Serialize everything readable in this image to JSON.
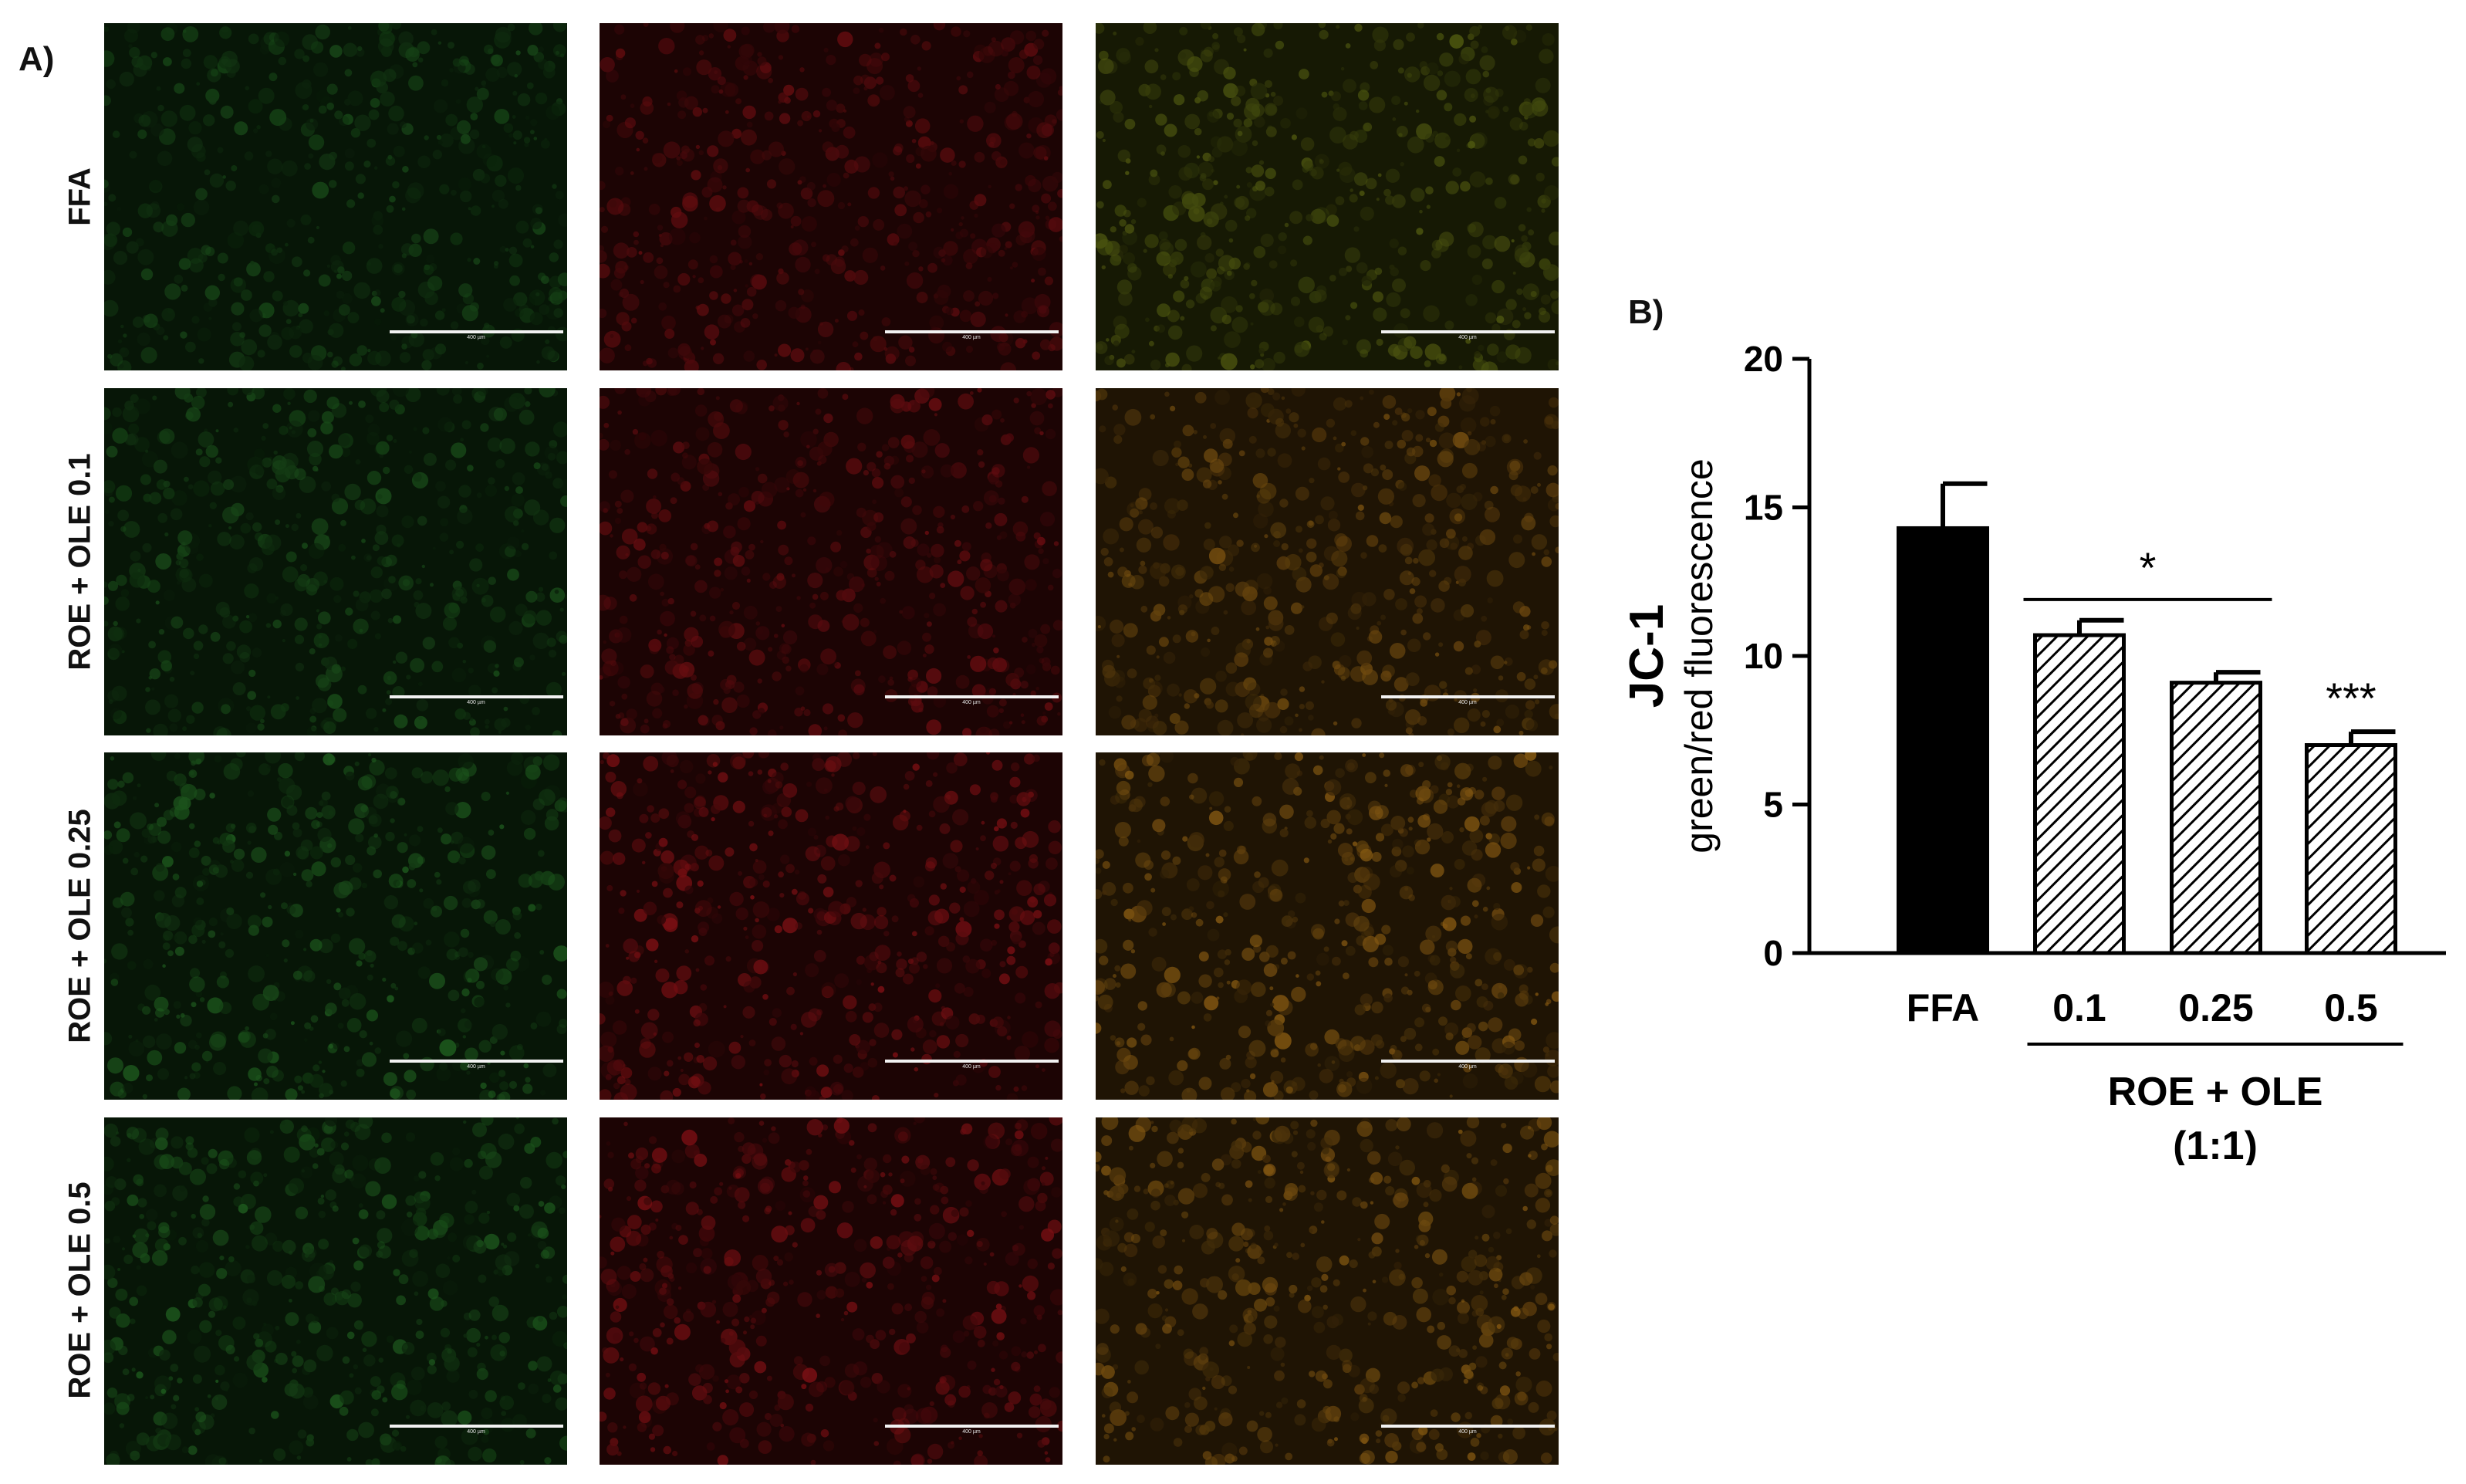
{
  "panel_a": {
    "label": "A)",
    "rows": [
      {
        "label": "FFA"
      },
      {
        "label": "ROE + OLE 0.1"
      },
      {
        "label": "ROE + OLE 0.25"
      },
      {
        "label": "ROE + OLE 0.5"
      }
    ],
    "channels": [
      {
        "name": "green",
        "color": "#2e8b2e"
      },
      {
        "name": "red",
        "color": "#b0161c"
      },
      {
        "name": "merge",
        "color": "#c0801a"
      }
    ],
    "scale_bar_text": "400 µm"
  },
  "panel_b": {
    "label": "B)",
    "chart_data": {
      "type": "bar",
      "categories": [
        "FFA",
        "0.1",
        "0.25",
        "0.5"
      ],
      "values": [
        14.3,
        10.7,
        9.1,
        7.0
      ],
      "errors": [
        1.5,
        0.5,
        0.35,
        0.45
      ],
      "fills": [
        "solid",
        "hatched",
        "hatched",
        "hatched"
      ],
      "ylabel_main": "JC-1",
      "ylabel_sub": "green/red fluorescence",
      "ylim": [
        0,
        20
      ],
      "yticks": [
        0,
        5,
        10,
        15,
        20
      ],
      "group_label_line1": "ROE + OLE",
      "group_label_line2": "(1:1)",
      "significance": [
        {
          "text": "*",
          "from": "0.1",
          "to": "0.25",
          "y": 11.9
        },
        {
          "text": "***",
          "over": "0.5"
        }
      ],
      "grid": false,
      "legend": "none"
    }
  }
}
